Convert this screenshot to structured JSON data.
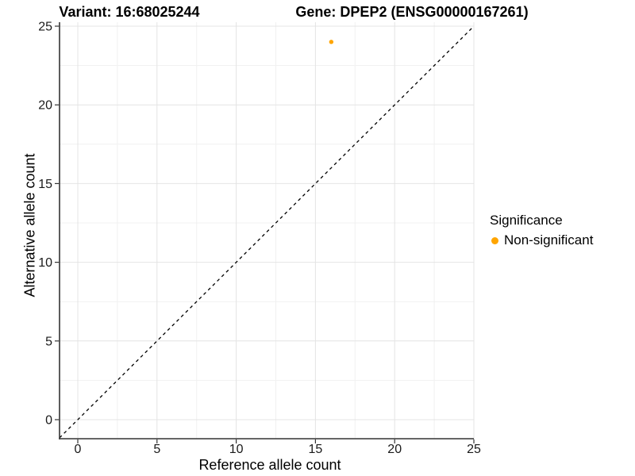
{
  "colors": {
    "background": "#FFFFFF",
    "panel_background": "#FFFFFF",
    "grid_major": "#E4E4E4",
    "grid_minor": "#F1F1F1",
    "axis_line": "#333333",
    "tick_mark": "#333333",
    "tick_label": "#1A1A1A",
    "identity_line": "#000000",
    "point": "#FFA500"
  },
  "chart_data": {
    "type": "scatter",
    "title_left": "Variant: 16:68025244",
    "title_right": "Gene: DPEP2 (ENSG00000167261)",
    "xlabel": "Reference allele count",
    "ylabel": "Alternative allele count",
    "xlim": [
      0,
      25
    ],
    "ylim": [
      0,
      25
    ],
    "x_ticks": [
      0,
      5,
      10,
      15,
      20,
      25
    ],
    "y_ticks": [
      0,
      5,
      10,
      15,
      20,
      25
    ],
    "grid": {
      "major": true,
      "minor": true
    },
    "identity_line": {
      "style": "dashed",
      "from": [
        0,
        0
      ],
      "to": [
        25,
        25
      ],
      "color": "#000000"
    },
    "legend_position": "right",
    "legend_title": "Significance",
    "series": [
      {
        "name": "Non-significant",
        "color": "#FFA500",
        "points": [
          {
            "x": 16,
            "y": 24
          }
        ]
      }
    ]
  }
}
